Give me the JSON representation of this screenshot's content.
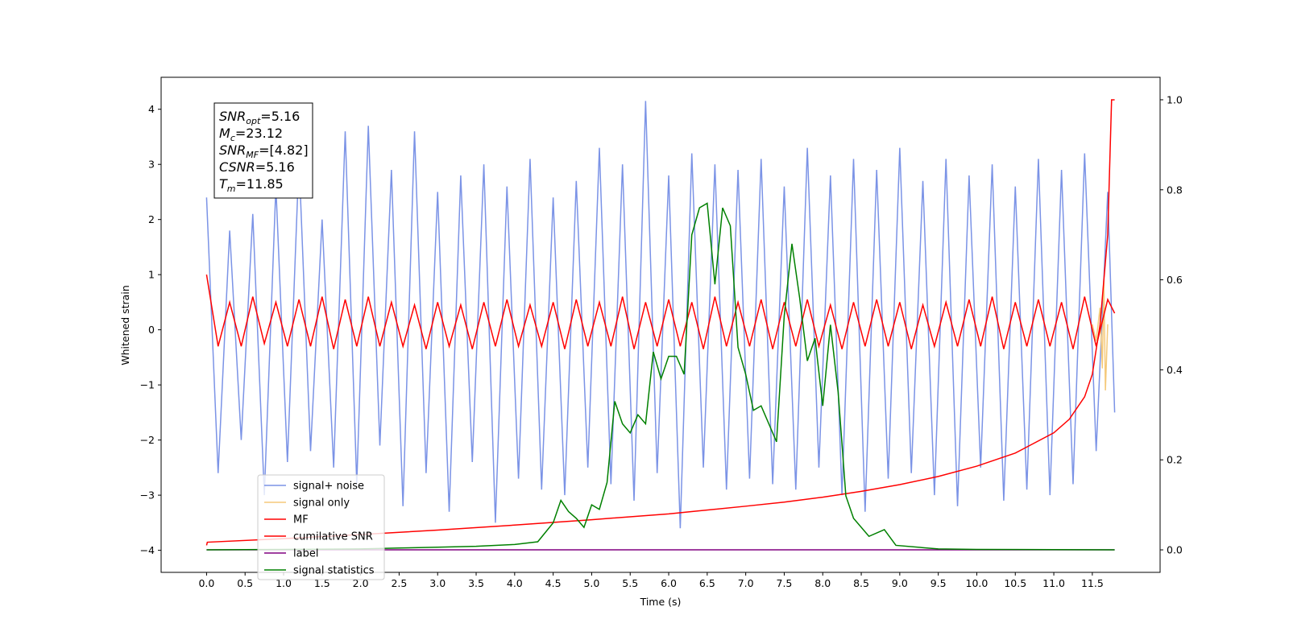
{
  "chart_data": {
    "type": "line",
    "xlabel": "Time (s)",
    "ylabel": "Whitened strain",
    "xlim": [
      -0.59,
      12.38
    ],
    "ylim": [
      -4.4,
      4.58
    ],
    "y2lim": [
      -0.05,
      1.05
    ],
    "xticks": [
      {
        "value": 0,
        "label": "0.0"
      },
      0.5,
      {
        "value": 1,
        "label": "1.0"
      },
      1.5,
      {
        "value": 2,
        "label": "2.0"
      },
      2.5,
      {
        "value": 3,
        "label": "3.0"
      },
      3.5,
      {
        "value": 4,
        "label": "4.0"
      },
      4.5,
      {
        "value": 5,
        "label": "5.0"
      },
      5.5,
      {
        "value": 6,
        "label": "6.0"
      },
      6.5,
      {
        "value": 7,
        "label": "7.0"
      },
      7.5,
      {
        "value": 8,
        "label": "8.0"
      },
      8.5,
      {
        "value": 9,
        "label": "9.0"
      },
      9.5,
      {
        "value": 10,
        "label": "10.0"
      },
      10.5,
      {
        "value": 11,
        "label": "11.0"
      },
      11.5
    ],
    "yticks": [
      {
        "value": -4,
        "label": "−4"
      },
      {
        "value": -3,
        "label": "−3"
      },
      {
        "value": -2,
        "label": "−2"
      },
      {
        "value": -1,
        "label": "−1"
      },
      0,
      1,
      2,
      3,
      4
    ],
    "y2ticks": [
      {
        "value": 0,
        "label": "0.0"
      },
      {
        "value": 0.2,
        "label": "0.2"
      },
      {
        "value": 0.4,
        "label": "0.4"
      },
      {
        "value": 0.6,
        "label": "0.6"
      },
      {
        "value": 0.8,
        "label": "0.8"
      },
      {
        "value": 1,
        "label": "1.0"
      }
    ],
    "annotation": [
      {
        "var": "SNR",
        "sub": "opt",
        "text": "=5.16"
      },
      {
        "var": "M",
        "sub": "c",
        "text": "=23.12"
      },
      {
        "var": "SNR",
        "sub": "MF",
        "text": "=[4.82]"
      },
      {
        "var": "CSNR",
        "text": "=5.16"
      },
      {
        "var": "T",
        "sub": "m",
        "text": "=11.85"
      }
    ],
    "series": [
      {
        "name": "signal+ noise",
        "color": "#7b93e6",
        "x": [
          0,
          0.15,
          0.3,
          0.45,
          0.6,
          0.75,
          0.9,
          1.05,
          1.2,
          1.35,
          1.5,
          1.65,
          1.8,
          1.95,
          2.1,
          2.25,
          2.4,
          2.55,
          2.7,
          2.85,
          3,
          3.15,
          3.3,
          3.45,
          3.6,
          3.75,
          3.9,
          4.05,
          4.2,
          4.35,
          4.5,
          4.65,
          4.8,
          4.95,
          5.1,
          5.25,
          5.4,
          5.55,
          5.7,
          5.85,
          6,
          6.15,
          6.3,
          6.45,
          6.6,
          6.75,
          6.9,
          7.05,
          7.2,
          7.35,
          7.5,
          7.65,
          7.8,
          7.95,
          8.1,
          8.25,
          8.4,
          8.55,
          8.7,
          8.85,
          9,
          9.15,
          9.3,
          9.45,
          9.6,
          9.75,
          9.9,
          10.05,
          10.2,
          10.35,
          10.5,
          10.65,
          10.8,
          10.95,
          11.1,
          11.25,
          11.4,
          11.55,
          11.7,
          11.79
        ],
        "values": [
          2.4,
          -2.6,
          1.8,
          -2.0,
          2.1,
          -3.0,
          2.6,
          -2.4,
          3.1,
          -2.2,
          2.0,
          -2.5,
          3.6,
          -2.8,
          3.7,
          -2.1,
          2.9,
          -3.2,
          3.6,
          -2.6,
          2.5,
          -3.3,
          2.8,
          -2.4,
          3.0,
          -3.5,
          2.6,
          -2.7,
          3.1,
          -2.9,
          2.4,
          -3.0,
          2.7,
          -2.5,
          3.3,
          -2.8,
          3.0,
          -3.1,
          4.15,
          -2.6,
          2.8,
          -3.6,
          3.2,
          -2.5,
          3.0,
          -2.9,
          2.9,
          -2.7,
          3.1,
          -2.8,
          2.6,
          -2.9,
          3.3,
          -2.5,
          2.8,
          -3.0,
          3.1,
          -3.3,
          2.9,
          -2.7,
          3.3,
          -2.6,
          2.7,
          -3.0,
          3.1,
          -3.2,
          2.8,
          -2.5,
          3.0,
          -3.1,
          2.6,
          -2.9,
          3.1,
          -3.0,
          2.9,
          -2.8,
          3.2,
          -2.2,
          2.5,
          -1.5
        ]
      },
      {
        "name": "signal only",
        "color": "#f5c97a",
        "x": [
          11.5,
          11.55,
          11.6,
          11.63,
          11.65,
          11.67,
          11.7
        ],
        "values": [
          0.1,
          -0.2,
          0.4,
          -0.7,
          0.9,
          -1.1,
          0.1
        ]
      },
      {
        "name": "MF",
        "color": "#ff0000",
        "x": [
          0,
          0.15,
          0.3,
          0.45,
          0.6,
          0.75,
          0.9,
          1.05,
          1.2,
          1.35,
          1.5,
          1.65,
          1.8,
          1.95,
          2.1,
          2.25,
          2.4,
          2.55,
          2.7,
          2.85,
          3,
          3.15,
          3.3,
          3.45,
          3.6,
          3.75,
          3.9,
          4.05,
          4.2,
          4.35,
          4.5,
          4.65,
          4.8,
          4.95,
          5.1,
          5.25,
          5.4,
          5.55,
          5.7,
          5.85,
          6,
          6.15,
          6.3,
          6.45,
          6.6,
          6.75,
          6.9,
          7.05,
          7.2,
          7.35,
          7.5,
          7.65,
          7.8,
          7.95,
          8.1,
          8.25,
          8.4,
          8.55,
          8.7,
          8.85,
          9,
          9.15,
          9.3,
          9.45,
          9.6,
          9.75,
          9.9,
          10.05,
          10.2,
          10.35,
          10.5,
          10.65,
          10.8,
          10.95,
          11.1,
          11.25,
          11.4,
          11.55,
          11.7,
          11.79
        ],
        "values": [
          1.0,
          -0.3,
          0.5,
          -0.3,
          0.6,
          -0.25,
          0.5,
          -0.3,
          0.55,
          -0.3,
          0.6,
          -0.35,
          0.55,
          -0.3,
          0.6,
          -0.3,
          0.5,
          -0.3,
          0.45,
          -0.35,
          0.5,
          -0.3,
          0.45,
          -0.35,
          0.5,
          -0.3,
          0.55,
          -0.3,
          0.45,
          -0.3,
          0.5,
          -0.35,
          0.55,
          -0.3,
          0.5,
          -0.3,
          0.6,
          -0.35,
          0.5,
          -0.3,
          0.55,
          -0.3,
          0.5,
          -0.35,
          0.6,
          -0.3,
          0.5,
          -0.3,
          0.55,
          -0.35,
          0.5,
          -0.3,
          0.55,
          -0.3,
          0.45,
          -0.35,
          0.5,
          -0.3,
          0.55,
          -0.3,
          0.5,
          -0.35,
          0.45,
          -0.3,
          0.5,
          -0.3,
          0.55,
          -0.3,
          0.6,
          -0.35,
          0.5,
          -0.3,
          0.55,
          -0.3,
          0.5,
          -0.35,
          0.6,
          -0.3,
          0.55,
          0.3
        ]
      },
      {
        "name": "cumilative SNR",
        "color": "#ff0000",
        "axis": "y2",
        "x": [
          0,
          0.01,
          1,
          2,
          3,
          4,
          5,
          6,
          7,
          7.5,
          8,
          8.5,
          9,
          9.5,
          10,
          10.5,
          11,
          11.2,
          11.4,
          11.5,
          11.6,
          11.7,
          11.75,
          11.79
        ],
        "values": [
          0.01,
          0.017,
          0.025,
          0.034,
          0.044,
          0.055,
          0.067,
          0.08,
          0.097,
          0.106,
          0.117,
          0.13,
          0.145,
          0.163,
          0.186,
          0.215,
          0.26,
          0.29,
          0.34,
          0.39,
          0.5,
          0.7,
          1.0,
          1.0
        ]
      },
      {
        "name": "label",
        "color": "#800080",
        "axis": "y2",
        "x": [
          0,
          11.79
        ],
        "values": [
          0,
          0
        ]
      },
      {
        "name": "signal statistics",
        "color": "#008000",
        "axis": "y2",
        "x": [
          0,
          1,
          2,
          2.5,
          3,
          3.5,
          4,
          4.3,
          4.5,
          4.6,
          4.7,
          4.8,
          4.9,
          5.0,
          5.1,
          5.2,
          5.3,
          5.4,
          5.5,
          5.6,
          5.7,
          5.8,
          5.9,
          6.0,
          6.1,
          6.2,
          6.3,
          6.4,
          6.5,
          6.6,
          6.7,
          6.8,
          6.9,
          7.0,
          7.1,
          7.2,
          7.3,
          7.4,
          7.5,
          7.6,
          7.7,
          7.8,
          7.9,
          8.0,
          8.1,
          8.2,
          8.3,
          8.4,
          8.6,
          8.8,
          8.95,
          9.5,
          10,
          11.79
        ],
        "values": [
          0,
          0.001,
          0.002,
          0.004,
          0.006,
          0.008,
          0.012,
          0.018,
          0.06,
          0.11,
          0.085,
          0.07,
          0.05,
          0.1,
          0.09,
          0.15,
          0.33,
          0.28,
          0.26,
          0.3,
          0.28,
          0.44,
          0.38,
          0.43,
          0.43,
          0.39,
          0.7,
          0.76,
          0.77,
          0.59,
          0.76,
          0.72,
          0.45,
          0.39,
          0.31,
          0.32,
          0.28,
          0.24,
          0.52,
          0.68,
          0.56,
          0.42,
          0.47,
          0.32,
          0.5,
          0.35,
          0.12,
          0.07,
          0.03,
          0.045,
          0.01,
          0.002,
          0.001,
          0
        ]
      }
    ]
  }
}
